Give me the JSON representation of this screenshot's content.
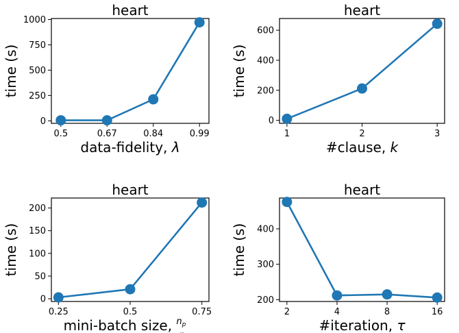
{
  "chart_data": [
    {
      "type": "line",
      "title": "heart",
      "ylabel": "time (s)",
      "xlabel": "data-fidelity, λ",
      "x": [
        "0.5",
        "0.67",
        "0.84",
        "0.99"
      ],
      "y": [
        5,
        5,
        212,
        972
      ],
      "ylim": [
        -25,
        1010
      ],
      "yticks": [
        0,
        250,
        500,
        750,
        1000
      ],
      "color": "#1f77b4",
      "grid": false
    },
    {
      "type": "line",
      "title": "heart",
      "ylabel": "time (s)",
      "xlabel": "#clause, k",
      "x": [
        "1",
        "2",
        "3"
      ],
      "y": [
        10,
        212,
        643
      ],
      "ylim": [
        -20,
        678
      ],
      "yticks": [
        0,
        200,
        400,
        600
      ],
      "color": "#1f77b4",
      "grid": false
    },
    {
      "type": "line",
      "title": "heart",
      "ylabel": "time (s)",
      "xlabel": "mini-batch size, np/n",
      "x": [
        "0.25",
        "0.5",
        "0.75"
      ],
      "y": [
        3,
        21,
        212
      ],
      "ylim": [
        -6,
        222
      ],
      "yticks": [
        0,
        50,
        100,
        150,
        200
      ],
      "color": "#1f77b4",
      "grid": false
    },
    {
      "type": "line",
      "title": "heart",
      "ylabel": "time (s)",
      "xlabel": "#iteration, τ",
      "x": [
        "2",
        "4",
        "8",
        "16"
      ],
      "y": [
        476,
        212,
        215,
        206
      ],
      "ylim": [
        195,
        487
      ],
      "yticks": [
        200,
        300,
        400
      ],
      "color": "#1f77b4",
      "grid": false
    }
  ]
}
